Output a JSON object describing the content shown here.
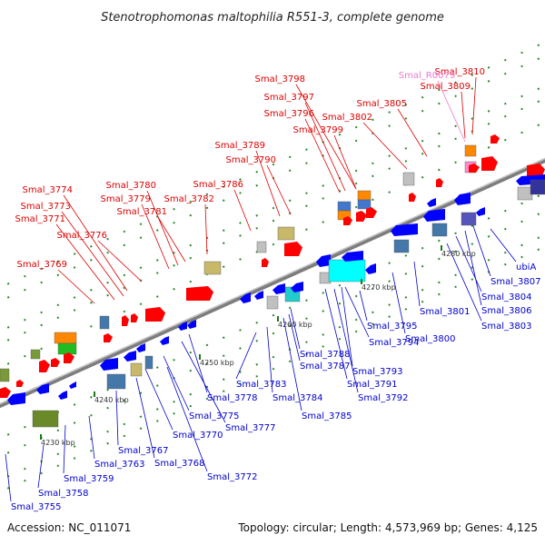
{
  "title": "Stenotrophomonas maltophilia R551-3, complete genome",
  "footer": {
    "accession": "Accession: NC_011071",
    "summary": "Topology: circular; Length: 4,573,969 bp; Genes: 4,125"
  },
  "colors": {
    "forward_label": "#dd0000",
    "reverse_label": "#0000cc",
    "rna_label": "#ee77cc",
    "backbone": "#8c8c8c",
    "forward_gene": "#ff0000",
    "reverse_gene": "#0000ff"
  },
  "scale_ticks": [
    "4230 kbp",
    "4240 kbp",
    "4250 kbp",
    "4260 kbp",
    "4270 kbp",
    "4280 kbp"
  ],
  "forward_labels": [
    "Smal_3769",
    "Smal_3771",
    "Smal_3773",
    "Smal_3774",
    "Smal_3776",
    "Smal_3779",
    "Smal_3780",
    "Smal_3781",
    "Smal_3782",
    "Smal_3786",
    "Smal_3789",
    "Smal_3790",
    "Smal_3796",
    "Smal_3797",
    "Smal_3798",
    "Smal_3799",
    "Smal_3802",
    "Smal_3805",
    "Smal_3809",
    "Smal_3810"
  ],
  "rna_labels": [
    "Smal_R0079"
  ],
  "reverse_labels": [
    "Smal_3755",
    "Smal_3758",
    "Smal_3759",
    "Smal_3763",
    "Smal_3767",
    "Smal_3768",
    "Smal_3770",
    "Smal_3772",
    "Smal_3775",
    "Smal_3777",
    "Smal_3778",
    "Smal_3783",
    "Smal_3784",
    "Smal_3785",
    "Smal_3787",
    "Smal_3788",
    "Smal_3791",
    "Smal_3792",
    "Smal_3793",
    "Smal_3794",
    "Smal_3795",
    "Smal_3800",
    "Smal_3801",
    "Smal_3803",
    "Smal_3804",
    "Smal_3806",
    "Smal_3807",
    "ubiA"
  ]
}
